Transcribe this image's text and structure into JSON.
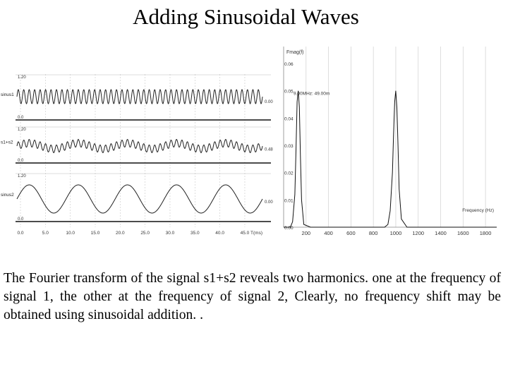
{
  "title": "Adding Sinusoidal Waves",
  "caption": "The Fourier transform of the signal s1+s2 reveals two harmonics. one at the frequency of signal 1, the other at the frequency of signal 2, Clearly, no frequency shift may be obtained using sinusoidal addition. .",
  "time_plot": {
    "channels": [
      {
        "name": "sinus1",
        "top_label": "1.20",
        "right_label": "0.00",
        "bottom_label": "0.0"
      },
      {
        "name": "s1+s2",
        "top_label": "1.20",
        "right_label": "0.48",
        "bottom_label": "0.0"
      },
      {
        "name": "sinus2",
        "top_label": "1.20",
        "right_label": "0.00",
        "bottom_label": "0.0"
      }
    ],
    "x_ticks": [
      "0.0",
      "5.0",
      "10.0",
      "15.0",
      "20.0",
      "25.0",
      "30.0",
      "35.0",
      "40.0",
      "45.0"
    ],
    "x_axis_label": "T(ms)"
  },
  "chart_data": {
    "type": "line",
    "ylabel": "Fmag(f)",
    "xlabel": "Frequency (Hz)",
    "annotation": "9.00MHz: 49.00m",
    "y_ticks": [
      "0.06",
      "0.05",
      "0.04",
      "0.03",
      "0.02",
      "0.01",
      "0.00"
    ],
    "x_ticks": [
      "200",
      "400",
      "600",
      "800",
      "1000",
      "1200",
      "1400",
      "1600",
      "1800"
    ],
    "xlim": [
      0,
      1900
    ],
    "ylim": [
      0,
      0.06
    ],
    "series": [
      {
        "x": [
          0,
          60,
          80,
          100,
          110,
          120,
          130,
          140,
          150,
          160,
          180,
          240,
          900,
          930,
          950,
          970,
          980,
          990,
          1000,
          1010,
          1020,
          1030,
          1050,
          1100,
          1900
        ],
        "y": [
          0,
          0,
          0.002,
          0.012,
          0.028,
          0.046,
          0.05,
          0.044,
          0.026,
          0.01,
          0.001,
          0,
          0,
          0.001,
          0.006,
          0.02,
          0.034,
          0.046,
          0.05,
          0.044,
          0.03,
          0.014,
          0.003,
          0,
          0
        ]
      }
    ]
  }
}
